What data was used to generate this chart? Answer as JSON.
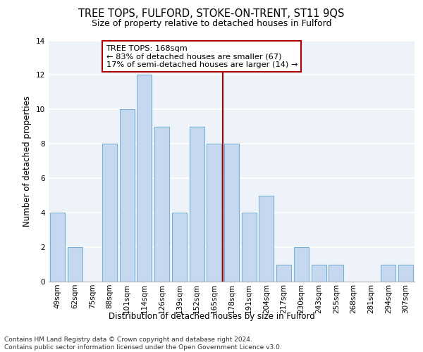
{
  "title": "TREE TOPS, FULFORD, STOKE-ON-TRENT, ST11 9QS",
  "subtitle": "Size of property relative to detached houses in Fulford",
  "xlabel": "Distribution of detached houses by size in Fulford",
  "ylabel": "Number of detached properties",
  "categories": [
    "49sqm",
    "62sqm",
    "75sqm",
    "88sqm",
    "101sqm",
    "114sqm",
    "126sqm",
    "139sqm",
    "152sqm",
    "165sqm",
    "178sqm",
    "191sqm",
    "204sqm",
    "217sqm",
    "230sqm",
    "243sqm",
    "255sqm",
    "268sqm",
    "281sqm",
    "294sqm",
    "307sqm"
  ],
  "values": [
    4,
    2,
    0,
    8,
    10,
    12,
    9,
    4,
    9,
    8,
    8,
    4,
    5,
    1,
    2,
    1,
    1,
    0,
    0,
    1,
    1
  ],
  "bar_color": "#c5d8f0",
  "bar_edge_color": "#7bafd4",
  "vline_color": "#aa0000",
  "annotation_title": "TREE TOPS: 168sqm",
  "annotation_line1": "← 83% of detached houses are smaller (67)",
  "annotation_line2": "17% of semi-detached houses are larger (14) →",
  "annotation_box_color": "#aa0000",
  "ylim": [
    0,
    14
  ],
  "yticks": [
    0,
    2,
    4,
    6,
    8,
    10,
    12,
    14
  ],
  "footer1": "Contains HM Land Registry data © Crown copyright and database right 2024.",
  "footer2": "Contains public sector information licensed under the Open Government Licence v3.0.",
  "bg_color": "#eef3f9",
  "grid_color": "#ffffff",
  "title_fontsize": 10.5,
  "subtitle_fontsize": 9,
  "axis_label_fontsize": 8.5,
  "tick_fontsize": 7.5,
  "annotation_fontsize": 8.2,
  "footer_fontsize": 6.5,
  "vline_x": 9.5
}
